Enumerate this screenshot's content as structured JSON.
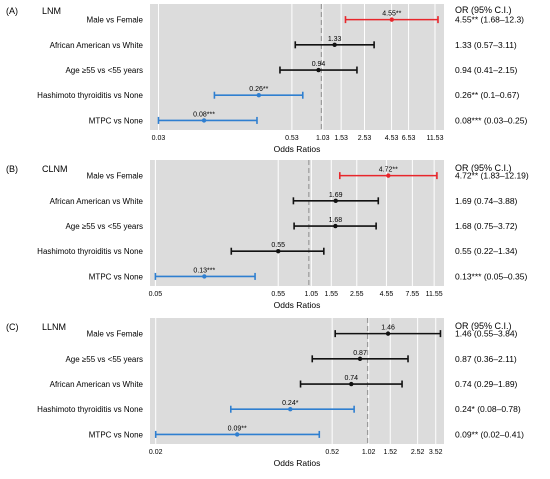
{
  "chart_data": [
    {
      "type": "forest",
      "panel_tag": "(A)",
      "title": "LNM",
      "xlabel": "Odds Ratios",
      "x_scale": "log",
      "xlim": [
        0.025,
        14
      ],
      "x_ticks": [
        0.03,
        0.53,
        1.03,
        1.53,
        2.53,
        4.53,
        6.53,
        11.53
      ],
      "reference_line": 1,
      "table_header": "OR (95% C.I.)",
      "rows": [
        {
          "label": "Male vs Female",
          "or": 4.55,
          "lower": 1.68,
          "upper": 12.3,
          "point_label": "4.55**",
          "ci_text": "4.55** (1.68–12.3)",
          "color": "red"
        },
        {
          "label": "African American vs White",
          "or": 1.33,
          "lower": 0.57,
          "upper": 3.11,
          "point_label": "1.33",
          "ci_text": "1.33 (0.57–3.11)",
          "color": "black"
        },
        {
          "label": "Age ≥55 vs <55 years",
          "or": 0.94,
          "lower": 0.41,
          "upper": 2.15,
          "point_label": "0.94",
          "ci_text": "0.94 (0.41–2.15)",
          "color": "black"
        },
        {
          "label": "Hashimoto thyroiditis vs None",
          "or": 0.26,
          "lower": 0.1,
          "upper": 0.67,
          "point_label": "0.26**",
          "ci_text": "0.26** (0.1–0.67)",
          "color": "blue"
        },
        {
          "label": "MTPC vs None",
          "or": 0.08,
          "lower": 0.03,
          "upper": 0.25,
          "point_label": "0.08***",
          "ci_text": "0.08*** (0.03–0.25)",
          "color": "blue"
        }
      ]
    },
    {
      "type": "forest",
      "panel_tag": "(B)",
      "title": "CLNM",
      "xlabel": "Odds Ratios",
      "x_scale": "log",
      "xlim": [
        0.045,
        14
      ],
      "x_ticks": [
        0.05,
        0.55,
        1.05,
        1.55,
        2.55,
        4.55,
        7.55,
        11.55
      ],
      "reference_line": 1,
      "table_header": "OR (95% C.I.)",
      "rows": [
        {
          "label": "Male vs Female",
          "or": 4.72,
          "lower": 1.83,
          "upper": 12.19,
          "point_label": "4.72**",
          "ci_text": "4.72** (1.83–12.19)",
          "color": "red"
        },
        {
          "label": "African American vs White",
          "or": 1.69,
          "lower": 0.74,
          "upper": 3.88,
          "point_label": "1.69",
          "ci_text": "1.69 (0.74–3.88)",
          "color": "black"
        },
        {
          "label": "Age ≥55 vs <55 years",
          "or": 1.68,
          "lower": 0.75,
          "upper": 3.72,
          "point_label": "1.68",
          "ci_text": "1.68 (0.75–3.72)",
          "color": "black"
        },
        {
          "label": "Hashimoto thyroiditis vs None",
          "or": 0.55,
          "lower": 0.22,
          "upper": 1.34,
          "point_label": "0.55",
          "ci_text": "0.55 (0.22–1.34)",
          "color": "black"
        },
        {
          "label": "MTPC vs None",
          "or": 0.13,
          "lower": 0.05,
          "upper": 0.35,
          "point_label": "0.13***",
          "ci_text": "0.13*** (0.05–0.35)",
          "color": "blue"
        }
      ]
    },
    {
      "type": "forest",
      "panel_tag": "(C)",
      "title": "LLNM",
      "xlabel": "Odds Ratios",
      "x_scale": "log",
      "xlim": [
        0.018,
        4.1
      ],
      "x_ticks": [
        0.02,
        0.52,
        1.02,
        1.52,
        2.52,
        3.52
      ],
      "reference_line": 1,
      "table_header": "OR (95% C.I.)",
      "rows": [
        {
          "label": "Male vs Female",
          "or": 1.46,
          "lower": 0.55,
          "upper": 3.84,
          "point_label": "1.46",
          "ci_text": "1.46 (0.55–3.84)",
          "color": "black"
        },
        {
          "label": "Age ≥55 vs <55 years",
          "or": 0.87,
          "lower": 0.36,
          "upper": 2.11,
          "point_label": "0.87",
          "ci_text": "0.87 (0.36–2.11)",
          "color": "black"
        },
        {
          "label": "African American vs White",
          "or": 0.74,
          "lower": 0.29,
          "upper": 1.89,
          "point_label": "0.74",
          "ci_text": "0.74 (0.29–1.89)",
          "color": "black"
        },
        {
          "label": "Hashimoto thyroiditis vs None",
          "or": 0.24,
          "lower": 0.08,
          "upper": 0.78,
          "point_label": "0.24*",
          "ci_text": "0.24* (0.08–0.78)",
          "color": "blue"
        },
        {
          "label": "MTPC vs None",
          "or": 0.09,
          "lower": 0.02,
          "upper": 0.41,
          "point_label": "0.09**",
          "ci_text": "0.09** (0.02–0.41)",
          "color": "blue"
        }
      ]
    }
  ],
  "colors": {
    "red": "#e8262b",
    "blue": "#2f7fd0",
    "black": "#111111",
    "panel_background": "#dcdcdc",
    "gridline": "#ffffff",
    "reference_line": "#9a9a9a"
  }
}
